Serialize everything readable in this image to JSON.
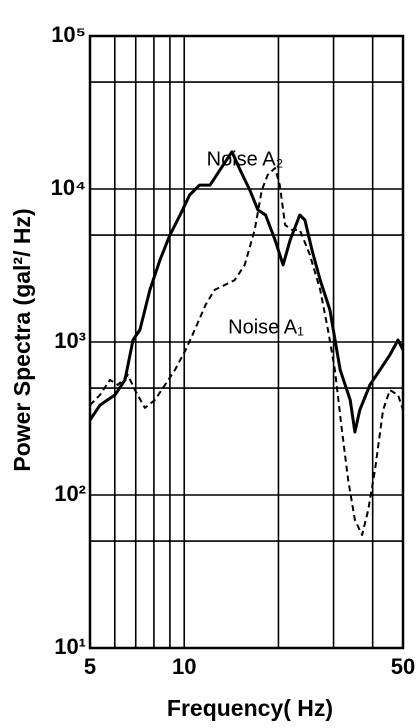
{
  "chart_data": {
    "type": "line",
    "xlabel": "Frequency( Hz)",
    "ylabel": "Power Spectra (gal²/ Hz)",
    "xscale": "log",
    "yscale": "log",
    "xlim": [
      5,
      50
    ],
    "ylim": [
      10,
      100000
    ],
    "xticks": [
      5,
      10,
      50
    ],
    "x_minor_ticks": [
      6,
      7,
      8,
      9,
      20,
      30,
      40
    ],
    "yticks": [
      {
        "value": 10,
        "label": "10¹"
      },
      {
        "value": 100,
        "label": "10²"
      },
      {
        "value": 1000,
        "label": "10³"
      },
      {
        "value": 10000,
        "label": "10⁴"
      },
      {
        "value": 100000,
        "label": "10⁵"
      }
    ],
    "y_minor_ticks": [
      50,
      500,
      5000,
      50000
    ],
    "grid": true,
    "series": [
      {
        "name": "Noise A₂",
        "color": "#000000",
        "dashed": false,
        "x": [
          5,
          5.38,
          6.01,
          6.47,
          6.86,
          7.22,
          7.77,
          8.37,
          9.0,
          9.7,
          10.4,
          11.2,
          12.1,
          13.0,
          14.2,
          15.1,
          16.2,
          17.2,
          18.2,
          19.5,
          20.7,
          21.8,
          23.4,
          24.3,
          25.6,
          27.2,
          29.2,
          31.5,
          33.9,
          35.1,
          36.4,
          39.2,
          42.2,
          45.4,
          48.2,
          50
        ],
        "values": [
          309,
          387,
          451,
          565,
          1030,
          1200,
          2190,
          3440,
          5000,
          6760,
          9140,
          10600,
          10600,
          13300,
          17500,
          13300,
          9840,
          7300,
          6760,
          4650,
          3190,
          4650,
          6760,
          6270,
          3990,
          2540,
          1620,
          656,
          418,
          258,
          360,
          524,
          656,
          823,
          1030,
          887
        ]
      },
      {
        "name": "Noise A₁",
        "color": "#000000",
        "dashed": true,
        "x": [
          5,
          5.38,
          5.79,
          6.14,
          6.61,
          6.96,
          7.49,
          8.06,
          8.68,
          9.34,
          10.1,
          10.8,
          11.7,
          12.5,
          13.5,
          14.5,
          15.6,
          16.8,
          17.7,
          18.5,
          19.5,
          20.2,
          21.0,
          22.1,
          23.4,
          25.2,
          27.2,
          28.8,
          30.3,
          31.9,
          33.4,
          35.1,
          37.0,
          38.7,
          40.7,
          43.2,
          45.4,
          48.2,
          50
        ],
        "values": [
          387,
          451,
          565,
          524,
          608,
          485,
          371,
          418,
          524,
          656,
          887,
          1200,
          1750,
          2190,
          2360,
          2540,
          3190,
          5400,
          9840,
          12400,
          13700,
          10600,
          5820,
          5400,
          5400,
          3710,
          2190,
          1200,
          656,
          266,
          125,
          68.7,
          54.8,
          79.8,
          146,
          360,
          485,
          451,
          360
        ]
      }
    ]
  }
}
